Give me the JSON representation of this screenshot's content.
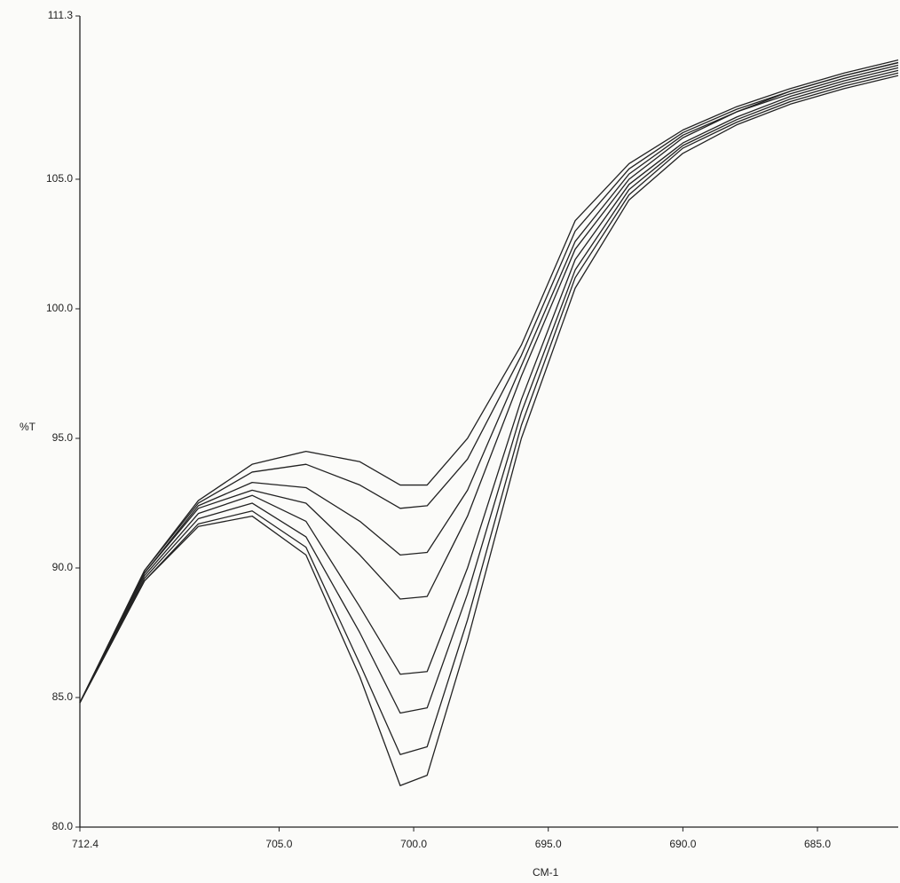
{
  "chart_data": {
    "type": "line",
    "y_label": "%T",
    "x_label": "CM-1",
    "xlim": [
      712.4,
      682.0
    ],
    "ylim": [
      80.0,
      111.3
    ],
    "xticks": [
      {
        "value": 712.4,
        "label": "712.4"
      },
      {
        "value": 705,
        "label": "705.0"
      },
      {
        "value": 700,
        "label": "700.0"
      },
      {
        "value": 695,
        "label": "695.0"
      },
      {
        "value": 690,
        "label": "690.0"
      },
      {
        "value": 685,
        "label": "685.0"
      }
    ],
    "yticks": [
      {
        "value": 80,
        "label": "80.0"
      },
      {
        "value": 85,
        "label": "85.0"
      },
      {
        "value": 90,
        "label": "90.0"
      },
      {
        "value": 95,
        "label": "95.0"
      },
      {
        "value": 100,
        "label": "100.0"
      },
      {
        "value": 105,
        "label": "105.0"
      },
      111.3
    ],
    "grid": false,
    "x": [
      712.4,
      710,
      708,
      706,
      704,
      702,
      700.5,
      699.5,
      698,
      696,
      694,
      692,
      690,
      688,
      686,
      684,
      682
    ],
    "series": [
      {
        "color": "#222222",
        "values": [
          84.8,
          89.9,
          92.6,
          94.0,
          94.5,
          94.1,
          93.2,
          93.2,
          95.0,
          98.6,
          103.4,
          105.6,
          106.9,
          107.8,
          108.5,
          109.1,
          109.6
        ]
      },
      {
        "color": "#222222",
        "values": [
          84.8,
          89.9,
          92.5,
          93.7,
          94.0,
          93.2,
          92.3,
          92.4,
          94.2,
          98.2,
          103.0,
          105.4,
          106.8,
          107.7,
          108.4,
          109.0,
          109.5
        ]
      },
      {
        "color": "#222222",
        "values": [
          84.8,
          89.8,
          92.4,
          93.3,
          93.1,
          91.8,
          90.5,
          90.6,
          93.0,
          97.8,
          102.6,
          105.2,
          106.7,
          107.6,
          108.4,
          109.0,
          109.5
        ]
      },
      {
        "color": "#222222",
        "values": [
          84.8,
          89.8,
          92.3,
          93.0,
          92.5,
          90.5,
          88.8,
          88.9,
          92.0,
          97.4,
          102.3,
          105.0,
          106.6,
          107.6,
          108.3,
          108.9,
          109.4
        ]
      },
      {
        "color": "#222222",
        "values": [
          84.8,
          89.7,
          92.1,
          92.8,
          91.8,
          88.5,
          85.9,
          86.0,
          90.0,
          96.5,
          101.9,
          104.8,
          106.4,
          107.4,
          108.2,
          108.8,
          109.3
        ]
      },
      {
        "color": "#222222",
        "values": [
          84.8,
          89.6,
          91.9,
          92.5,
          91.2,
          87.5,
          84.4,
          84.6,
          89.0,
          96.0,
          101.5,
          104.6,
          106.3,
          107.3,
          108.1,
          108.7,
          109.2
        ]
      },
      {
        "color": "#222222",
        "values": [
          84.8,
          89.5,
          91.7,
          92.2,
          90.8,
          86.3,
          82.8,
          83.1,
          88.0,
          95.5,
          101.2,
          104.4,
          106.2,
          107.2,
          108.0,
          108.6,
          109.1
        ]
      },
      {
        "color": "#222222",
        "values": [
          84.8,
          89.5,
          91.6,
          92.0,
          90.5,
          85.8,
          81.6,
          82.0,
          87.2,
          95.0,
          100.8,
          104.2,
          106.0,
          107.1,
          107.9,
          108.5,
          109.0
        ]
      }
    ]
  }
}
